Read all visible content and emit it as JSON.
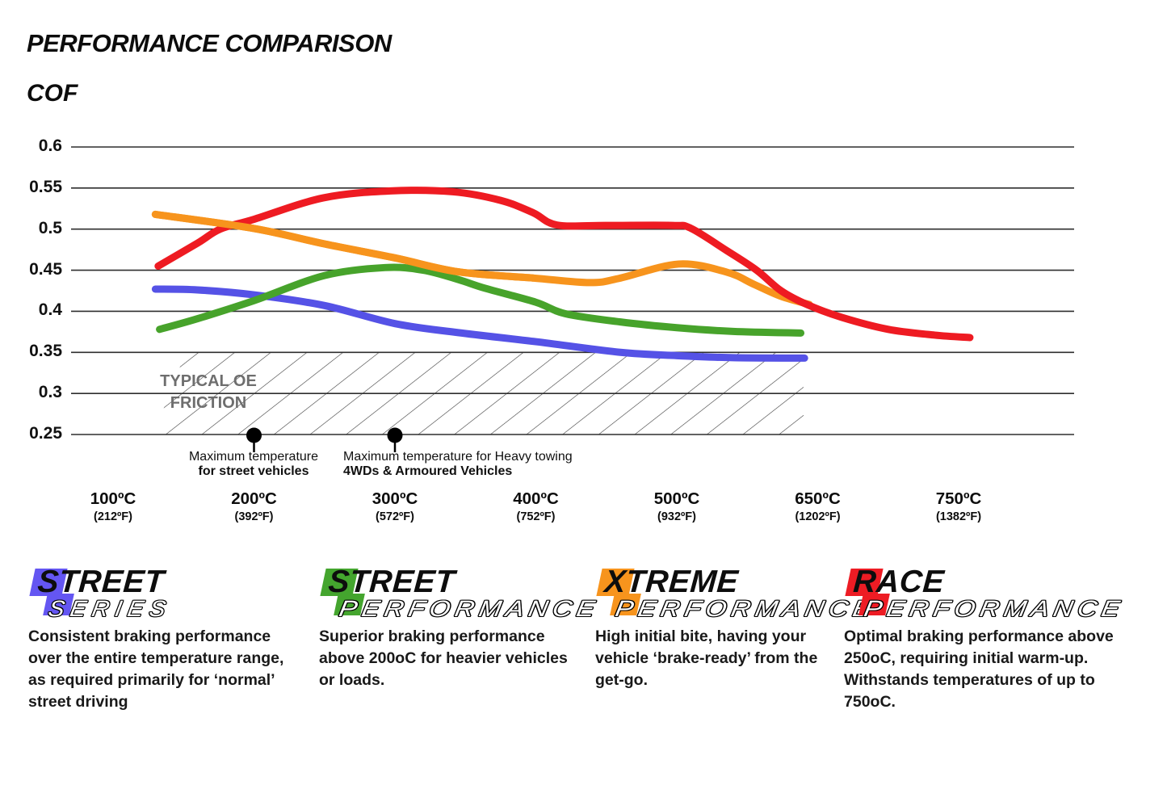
{
  "page": {
    "title": "PERFORMANCE COMPARISON",
    "cof_label": "COF"
  },
  "chart_data": {
    "type": "line",
    "title": "PERFORMANCE COMPARISON",
    "ylabel": "COF",
    "ylim": [
      0.25,
      0.6
    ],
    "grid": true,
    "grid_color": "#2e2e2e",
    "y_ticks": [
      "0.6",
      "0.55",
      "0.5",
      "0.45",
      "0.4",
      "0.35",
      "0.3",
      "0.25"
    ],
    "x_ticks": [
      {
        "t": 100,
        "c": "100ºC",
        "f": "(212ºF)"
      },
      {
        "t": 200,
        "c": "200ºC",
        "f": "(392ºF)"
      },
      {
        "t": 300,
        "c": "300ºC",
        "f": "(572ºF)"
      },
      {
        "t": 400,
        "c": "400ºC",
        "f": "(752ºF)"
      },
      {
        "t": 500,
        "c": "500ºC",
        "f": "(932ºF)"
      },
      {
        "t": 650,
        "c": "650ºC",
        "f": "(1202ºF)"
      },
      {
        "t": 750,
        "c": "750ºC",
        "f": "(1382ºF)"
      }
    ],
    "oe_band": {
      "label_line1": "TYPICAL OE",
      "label_line2": "FRICTION",
      "cof_from": 0.25,
      "cof_to": 0.35
    },
    "annotations": [
      {
        "t": 200,
        "line1": "Maximum temperature",
        "line2": "for street vehicles"
      },
      {
        "t": 300,
        "line1": "Maximum temperature for Heavy towing",
        "line2": "4WDs & Armoured Vehicles"
      }
    ],
    "series": [
      {
        "name": "Street Series",
        "color": "#5552e6",
        "points": [
          [
            130,
            0.427
          ],
          [
            160,
            0.426
          ],
          [
            200,
            0.42
          ],
          [
            250,
            0.407
          ],
          [
            300,
            0.385
          ],
          [
            345,
            0.374
          ],
          [
            400,
            0.363
          ],
          [
            460,
            0.35
          ],
          [
            500,
            0.346
          ],
          [
            560,
            0.3435
          ],
          [
            636,
            0.343
          ]
        ]
      },
      {
        "name": "Street Performance",
        "color": "#47a32b",
        "points": [
          [
            133,
            0.378
          ],
          [
            160,
            0.391
          ],
          [
            200,
            0.413
          ],
          [
            250,
            0.4435
          ],
          [
            293,
            0.4532
          ],
          [
            320,
            0.45
          ],
          [
            345,
            0.4386
          ],
          [
            364,
            0.428
          ],
          [
            400,
            0.411
          ],
          [
            421,
            0.397
          ],
          [
            460,
            0.387
          ],
          [
            500,
            0.38
          ],
          [
            560,
            0.3755
          ],
          [
            632,
            0.3735
          ]
        ]
      },
      {
        "name": "Xtreme Performance",
        "color": "#f7941d",
        "overlay_to": 400,
        "points": [
          [
            130,
            0.518
          ],
          [
            200,
            0.5008
          ],
          [
            250,
            0.482
          ],
          [
            300,
            0.465
          ],
          [
            345,
            0.448
          ],
          [
            398,
            0.4405
          ],
          [
            438,
            0.4349
          ],
          [
            459,
            0.44
          ],
          [
            502,
            0.4575
          ],
          [
            553,
            0.4477
          ],
          [
            582,
            0.4329
          ],
          [
            611,
            0.4182
          ],
          [
            641,
            0.4083
          ]
        ]
      },
      {
        "name": "Race Performance",
        "color": "#ee1b22",
        "points": [
          [
            132,
            0.455
          ],
          [
            160,
            0.483
          ],
          [
            176,
            0.5
          ],
          [
            200,
            0.512
          ],
          [
            249,
            0.538
          ],
          [
            297,
            0.5465
          ],
          [
            341,
            0.5455
          ],
          [
            375,
            0.535
          ],
          [
            398,
            0.52
          ],
          [
            415,
            0.505
          ],
          [
            450,
            0.5045
          ],
          [
            497,
            0.5045
          ],
          [
            515,
            0.501
          ],
          [
            553,
            0.474
          ],
          [
            585,
            0.45
          ],
          [
            611,
            0.425
          ],
          [
            639,
            0.408
          ],
          [
            667,
            0.3926
          ],
          [
            700,
            0.378
          ],
          [
            733,
            0.371
          ],
          [
            758,
            0.368
          ]
        ]
      }
    ]
  },
  "legend": [
    {
      "word": "STREET",
      "sub": "SERIES",
      "color": "#6456f2",
      "description": "Consistent braking performance over the entire temperature range, as required primarily for ‘normal’ street driving"
    },
    {
      "word": "STREET",
      "sub": "PERFORMANCE",
      "color": "#44a52e",
      "description": "Superior braking performance above 200oC for heavier vehicles or loads."
    },
    {
      "word": "XTREME",
      "sub": "PERFORMANCE",
      "color": "#f7941d",
      "description": "High initial bite, having your vehicle ‘brake-ready’ from the get-go."
    },
    {
      "word": "RACE",
      "sub": "PERFORMANCE",
      "color": "#ed1c24",
      "description": "Optimal braking performance above 250oC, requiring initial warm-up. Withstands temperatures of up to 750oC."
    }
  ]
}
